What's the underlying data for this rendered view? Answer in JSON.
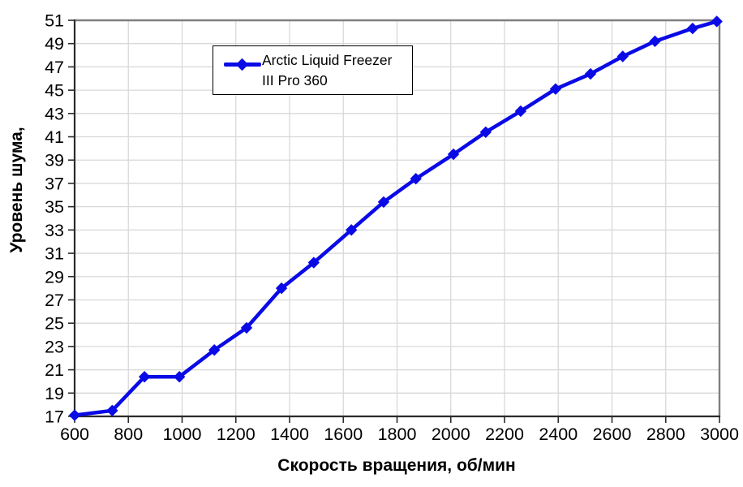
{
  "chart_data": {
    "type": "line",
    "title": "",
    "xlabel": "Скорость вращения, об/мин",
    "ylabel": "Уровень шума,",
    "xlim": [
      600,
      3000
    ],
    "ylim": [
      17,
      51
    ],
    "x_tick_step": 200,
    "y_tick_step": 2,
    "grid": true,
    "legend_position": "inside-top-left",
    "series": [
      {
        "name": "Arctic Liquid Freezer III Pro 360",
        "marker": "diamond",
        "x": [
          600,
          740,
          860,
          990,
          1120,
          1240,
          1370,
          1490,
          1630,
          1750,
          1870,
          2010,
          2130,
          2260,
          2390,
          2520,
          2640,
          2760,
          2900,
          2990
        ],
        "y": [
          17.1,
          17.5,
          20.4,
          20.4,
          22.7,
          24.6,
          28.0,
          30.2,
          33.0,
          35.4,
          37.4,
          39.5,
          41.4,
          43.2,
          45.1,
          46.4,
          47.9,
          49.2,
          50.3,
          50.9
        ]
      }
    ]
  },
  "legend": {
    "line1": "Arctic Liquid Freezer",
    "line2": "III Pro 360"
  },
  "colors": {
    "series": "#0A0AE6",
    "grid": "#D8D8D8",
    "frame": "#7F7F7F",
    "axis": "#2B2B2B",
    "text": "#000000",
    "background": "#FFFFFF"
  }
}
